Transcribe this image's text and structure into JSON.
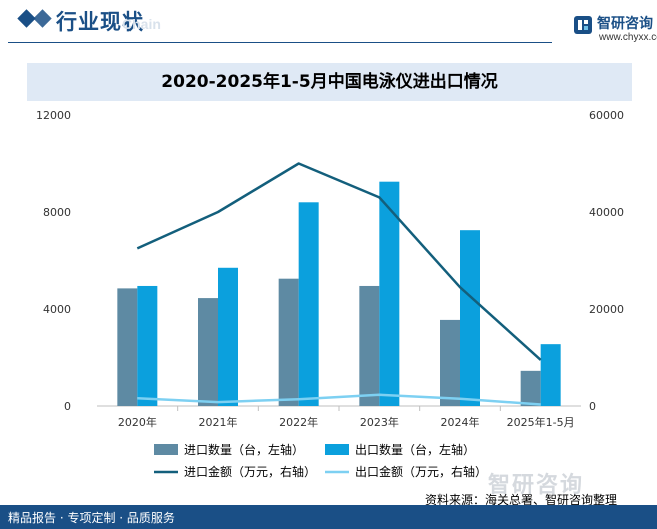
{
  "header": {
    "section_title": "行业现状",
    "ghost_text": "Chain",
    "brand_name": "智研咨询",
    "brand_url": "www.chyxx.com"
  },
  "chart_data": {
    "type": "bar",
    "title": "2020-2025年1-5月中国电泳仪进出口情况",
    "categories": [
      "2020年",
      "2021年",
      "2022年",
      "2023年",
      "2024年",
      "2025年1-5月"
    ],
    "left_axis": {
      "ylim": [
        0,
        12000
      ],
      "ticks": [
        "0",
        "4000",
        "8000",
        "12000"
      ]
    },
    "right_axis": {
      "ylim": [
        0,
        60000
      ],
      "ticks": [
        "0",
        "20000",
        "40000",
        "60000"
      ]
    },
    "series": [
      {
        "name": "进口数量（台，左轴）",
        "type": "bar",
        "axis": "left",
        "color": "#5e8aa3",
        "values": [
          4850,
          4450,
          5250,
          4950,
          3550,
          1450
        ]
      },
      {
        "name": "出口数量（台，左轴）",
        "type": "bar",
        "axis": "left",
        "color": "#0ba0dd",
        "values": [
          4950,
          5700,
          8400,
          9250,
          7250,
          2550
        ]
      },
      {
        "name": "进口金额（万元，右轴）",
        "type": "line",
        "axis": "right",
        "color": "#135f7c",
        "values": [
          32500,
          40000,
          50000,
          43000,
          24500,
          9500
        ]
      },
      {
        "name": "出口金额（万元，右轴）",
        "type": "line",
        "axis": "right",
        "color": "#7dd0f2",
        "values": [
          1600,
          800,
          1400,
          2300,
          1500,
          300
        ]
      }
    ],
    "grid": false,
    "legend_position": "bottom"
  },
  "footer": {
    "left_text": "精品报告 · 专项定制 · 品质服务",
    "source_text": "资料来源：海关总署、智研咨询整理",
    "logo_text": "智研咨询"
  }
}
